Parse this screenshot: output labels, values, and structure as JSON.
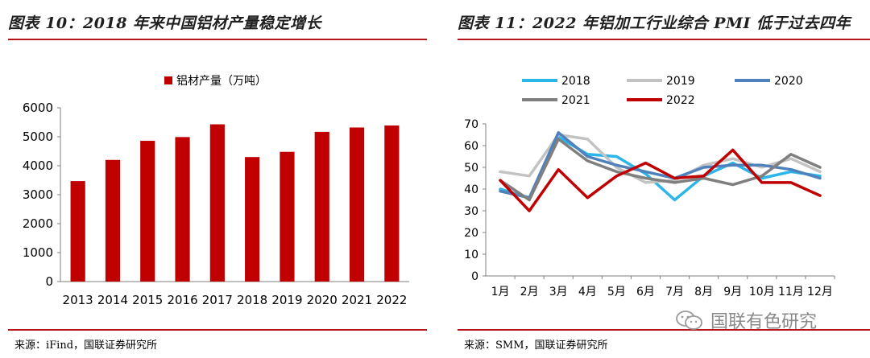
{
  "left_panel": {
    "title": "图表 10：2018 年来中国铝材产量稳定增长",
    "source": "来源：iFind，国联证券研究所"
  },
  "right_panel": {
    "title": "图表 11：2022 年铝加工行业综合 PMI 低于过去四年",
    "source": "来源：SMM，国联证券研究所"
  },
  "watermark": {
    "text": "国联有色研究",
    "icon": "wechat-icon"
  },
  "colors": {
    "accent": "#b4141a",
    "bar": "#c00000"
  },
  "chart_data": [
    {
      "type": "bar",
      "title": "",
      "categories": [
        "2013",
        "2014",
        "2015",
        "2016",
        "2017",
        "2018",
        "2019",
        "2020",
        "2021",
        "2022"
      ],
      "series": [
        {
          "name": "铝材产量（万吨）",
          "color": "#c00000",
          "values": [
            3470,
            4200,
            4860,
            4990,
            5430,
            4300,
            4480,
            5170,
            5320,
            5390
          ]
        }
      ],
      "ylim": [
        0,
        6000
      ],
      "yticks": [
        "0",
        "1000",
        "2000",
        "3000",
        "4000",
        "5000",
        "6000"
      ],
      "legend": "top",
      "grid": false
    },
    {
      "type": "line",
      "title": "",
      "categories": [
        "1月",
        "2月",
        "3月",
        "4月",
        "5月",
        "6月",
        "7月",
        "8月",
        "9月",
        "10月",
        "11月",
        "12月"
      ],
      "series": [
        {
          "name": "2018",
          "color": "#2bb5e8",
          "values": [
            40,
            36,
            64,
            56,
            55,
            47,
            35,
            46,
            52,
            45,
            48,
            46
          ]
        },
        {
          "name": "2019",
          "color": "#c3c3c3",
          "values": [
            48,
            46,
            65,
            63,
            50,
            43,
            44,
            51,
            54,
            50,
            54,
            48
          ]
        },
        {
          "name": "2020",
          "color": "#4f81bd",
          "values": [
            39,
            36,
            66,
            55,
            51,
            48,
            45,
            50,
            51,
            51,
            49,
            45
          ]
        },
        {
          "name": "2021",
          "color": "#7f7f7f",
          "values": [
            44,
            35,
            63,
            53,
            48,
            45,
            43,
            45,
            42,
            46,
            56,
            50
          ]
        },
        {
          "name": "2022",
          "color": "#c00000",
          "values": [
            44,
            30,
            49,
            36,
            46,
            52,
            45,
            46,
            58,
            43,
            43,
            37
          ]
        }
      ],
      "ylim": [
        0,
        70
      ],
      "yticks": [
        "0",
        "10",
        "20",
        "30",
        "40",
        "50",
        "60",
        "70"
      ],
      "legend": "top",
      "grid": false
    }
  ]
}
